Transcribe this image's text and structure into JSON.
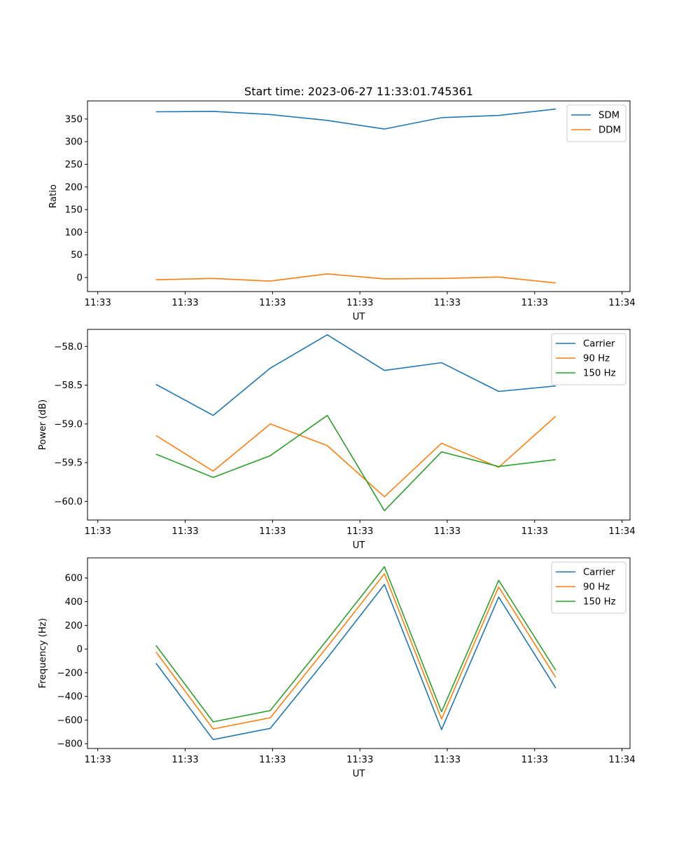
{
  "title": "Start time: 2023-06-27 11:33:01.745361",
  "colors": {
    "blue": "#1f77b4",
    "orange": "#ff7f0e",
    "green": "#2ca02c"
  },
  "chart_data": [
    {
      "type": "line",
      "xlabel": "UT",
      "ylabel": "Ratio",
      "x_tick_labels": [
        "11:33",
        "11:33",
        "11:33",
        "11:33",
        "11:33",
        "11:33",
        "11:34"
      ],
      "y_ticks": [
        0,
        50,
        100,
        150,
        200,
        250,
        300,
        350
      ],
      "ylim": [
        -31,
        390
      ],
      "legend_position": "upper right",
      "x": [
        1,
        2,
        3,
        4,
        5,
        6,
        7,
        8
      ],
      "xlim": [
        -0.2,
        9.3
      ],
      "series": [
        {
          "name": "SDM",
          "color": "#1f77b4",
          "values": [
            366,
            367,
            360,
            347,
            328,
            353,
            358,
            372
          ]
        },
        {
          "name": "DDM",
          "color": "#ff7f0e",
          "values": [
            -5,
            -2,
            -8,
            8,
            -3,
            -2,
            1,
            -12
          ]
        }
      ]
    },
    {
      "type": "line",
      "xlabel": "UT",
      "ylabel": "Power (dB)",
      "x_tick_labels": [
        "11:33",
        "11:33",
        "11:33",
        "11:33",
        "11:33",
        "11:33",
        "11:34"
      ],
      "y_ticks": [
        -58.0,
        -58.5,
        -59.0,
        -59.5,
        -60.0
      ],
      "y_tick_labels": [
        "−58.0",
        "−58.5",
        "−59.0",
        "−59.5",
        "−60.0"
      ],
      "ylim": [
        -60.24,
        -57.78
      ],
      "legend_position": "upper right",
      "x": [
        1,
        2,
        3,
        4,
        5,
        6,
        7,
        8
      ],
      "xlim": [
        -0.2,
        9.3
      ],
      "series": [
        {
          "name": "Carrier",
          "color": "#1f77b4",
          "values": [
            -58.49,
            -58.89,
            -58.28,
            -57.85,
            -58.31,
            -58.21,
            -58.58,
            -58.51
          ]
        },
        {
          "name": "90 Hz",
          "color": "#ff7f0e",
          "values": [
            -59.15,
            -59.61,
            -59.0,
            -59.28,
            -59.94,
            -59.25,
            -59.56,
            -58.9
          ]
        },
        {
          "name": "150 Hz",
          "color": "#2ca02c",
          "values": [
            -59.39,
            -59.69,
            -59.41,
            -58.89,
            -60.12,
            -59.36,
            -59.55,
            -59.46
          ]
        }
      ]
    },
    {
      "type": "line",
      "xlabel": "UT",
      "ylabel": "Frequency (Hz)",
      "x_tick_labels": [
        "11:33",
        "11:33",
        "11:33",
        "11:33",
        "11:33",
        "11:33",
        "11:34"
      ],
      "y_ticks": [
        600,
        400,
        200,
        0,
        -200,
        -400,
        -600,
        -800
      ],
      "y_tick_labels": [
        "600",
        "400",
        "200",
        "0",
        "−200",
        "−400",
        "−600",
        "−800"
      ],
      "ylim": [
        -840,
        770
      ],
      "legend_position": "upper right",
      "x": [
        1,
        2,
        3,
        4,
        5,
        6,
        7,
        8
      ],
      "xlim": [
        -0.2,
        9.3
      ],
      "series": [
        {
          "name": "Carrier",
          "color": "#1f77b4",
          "values": [
            -120,
            -765,
            -670,
            -75,
            545,
            -680,
            440,
            -330
          ]
        },
        {
          "name": "90 Hz",
          "color": "#ff7f0e",
          "values": [
            -25,
            -675,
            -580,
            20,
            635,
            -590,
            525,
            -240
          ]
        },
        {
          "name": "150 Hz",
          "color": "#2ca02c",
          "values": [
            30,
            -615,
            -520,
            80,
            695,
            -530,
            580,
            -180
          ]
        }
      ]
    }
  ]
}
